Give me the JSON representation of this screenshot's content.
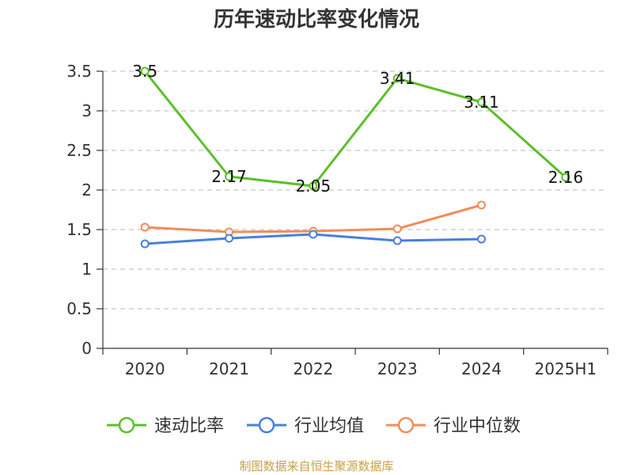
{
  "title": "历年速动比率变化情况",
  "source": "制图数据来自恒生聚源数据库",
  "chart_data": {
    "type": "line",
    "title": "历年速动比率变化情况",
    "categories": [
      "2020",
      "2021",
      "2022",
      "2023",
      "2024",
      "2025H1"
    ],
    "yticks": [
      "0",
      "0.5",
      "1",
      "1.5",
      "2",
      "2.5",
      "3",
      "3.5"
    ],
    "ylim": [
      0,
      3.5
    ],
    "grid": true,
    "legend_position": "bottom",
    "series": [
      {
        "name": "速动比率",
        "color": "#5cbf2a",
        "values": [
          3.5,
          2.17,
          2.05,
          3.41,
          3.11,
          2.16
        ],
        "labels": [
          "3.5",
          "2.17",
          "2.05",
          "3.41",
          "3.11",
          "2.16"
        ]
      },
      {
        "name": "行业均值",
        "color": "#4a7fdc",
        "values": [
          1.32,
          1.39,
          1.44,
          1.36,
          1.38,
          null
        ]
      },
      {
        "name": "行业中位数",
        "color": "#f28c5a",
        "values": [
          1.53,
          1.47,
          1.48,
          1.51,
          1.81,
          null
        ]
      }
    ]
  }
}
